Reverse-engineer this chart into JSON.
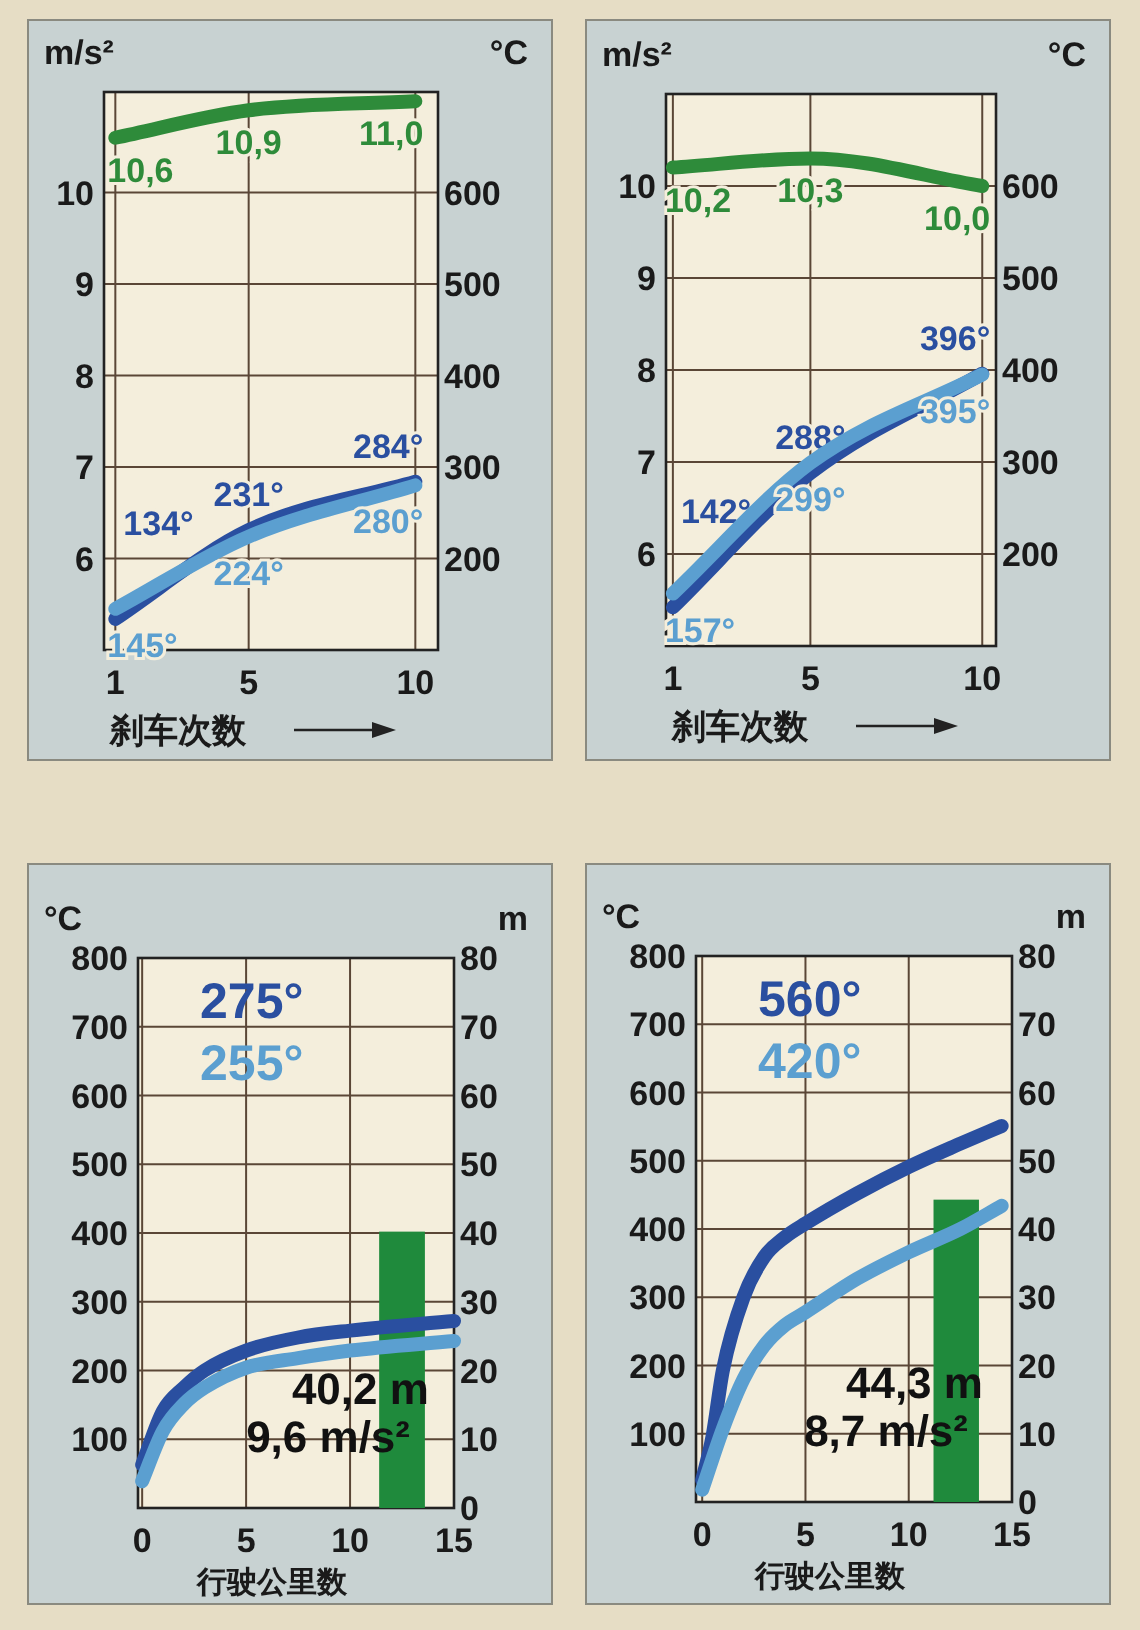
{
  "chart_data": [
    {
      "type": "line",
      "ylabel": "m/s²",
      "y2label": "°C",
      "xlabel": "刹车次数",
      "x": [
        1,
        5,
        10
      ],
      "xlim": [
        0.66,
        10.68
      ],
      "xticks": [
        1,
        5,
        10
      ],
      "ylim": [
        5.0,
        11.1
      ],
      "yticks": [
        6,
        7,
        8,
        9,
        10
      ],
      "y2lim": [
        100,
        710
      ],
      "y2ticks": [
        200,
        300,
        400,
        500,
        600
      ],
      "grid": true,
      "series": [
        {
          "color": "#2e8b3a",
          "values": [
            10.6,
            10.9,
            11.0
          ],
          "value_labels": [
            "10,6",
            "10,9",
            "11,0"
          ]
        },
        {
          "color": "#2a4fa0",
          "axis": "y2",
          "values": [
            134,
            231,
            284
          ],
          "value_labels": [
            "134°",
            "231°",
            "284°"
          ]
        },
        {
          "color": "#5b9fd0",
          "axis": "y2",
          "values": [
            145,
            224,
            280
          ],
          "value_labels": [
            "145°",
            "224°",
            "280°"
          ]
        }
      ]
    },
    {
      "type": "line",
      "ylabel": "m/s²",
      "y2label": "°C",
      "xlabel": "刹车次数",
      "x": [
        1,
        5,
        10
      ],
      "xlim": [
        0.8,
        10.4
      ],
      "xticks": [
        1,
        5,
        10
      ],
      "ylim": [
        5.0,
        11.0
      ],
      "yticks": [
        6,
        7,
        8,
        9,
        10
      ],
      "y2lim": [
        100,
        700
      ],
      "y2ticks": [
        200,
        300,
        400,
        500,
        600
      ],
      "grid": true,
      "series": [
        {
          "color": "#2e8b3a",
          "values": [
            10.2,
            10.3,
            10.0
          ],
          "value_labels": [
            "10,2",
            "10,3",
            "10,0"
          ]
        },
        {
          "color": "#2a4fa0",
          "axis": "y2",
          "values": [
            142,
            288,
            396
          ],
          "value_labels": [
            "142°",
            "288°",
            "396°"
          ]
        },
        {
          "color": "#5b9fd0",
          "axis": "y2",
          "values": [
            157,
            299,
            395
          ],
          "value_labels": [
            "157°",
            "299°",
            "395°"
          ]
        }
      ]
    },
    {
      "type": "line",
      "ylabel": "°C",
      "y2label": "m",
      "xlabel": "行驶公里数",
      "xlim": [
        -0.2,
        15
      ],
      "xticks": [
        0,
        5,
        10,
        15
      ],
      "ylim": [
        0,
        800
      ],
      "yticks": [
        100,
        200,
        300,
        400,
        500,
        600,
        700,
        800
      ],
      "y2lim": [
        0,
        80
      ],
      "y2ticks": [
        0,
        10,
        20,
        30,
        40,
        50,
        60,
        70,
        80
      ],
      "grid": true,
      "annotations": [
        "275°",
        "255°",
        "9,6 m/s²"
      ],
      "series": [
        {
          "color": "#2a4fa0",
          "x": [
            0,
            1,
            2,
            3,
            5,
            7.5,
            10,
            15
          ],
          "values": [
            63,
            141,
            175,
            200,
            229,
            248,
            258,
            272
          ]
        },
        {
          "color": "#5b9fd0",
          "x": [
            0,
            1,
            2,
            3,
            5,
            7.5,
            10,
            15
          ],
          "values": [
            39,
            112,
            151,
            175,
            204,
            218,
            229,
            243
          ]
        },
        {
          "type": "bar",
          "color": "#1f8a3c",
          "axis": "y2",
          "x": [
            12.5
          ],
          "values": [
            40.2
          ],
          "value_labels": [
            "40,2 m"
          ]
        }
      ]
    },
    {
      "type": "line",
      "ylabel": "°C",
      "y2label": "m",
      "xlabel": "行驶公里数",
      "xlim": [
        -0.3,
        15
      ],
      "xticks": [
        0,
        5,
        10,
        15
      ],
      "ylim": [
        0,
        800
      ],
      "yticks": [
        100,
        200,
        300,
        400,
        500,
        600,
        700,
        800
      ],
      "y2lim": [
        0,
        80
      ],
      "y2ticks": [
        0,
        10,
        20,
        30,
        40,
        50,
        60,
        70,
        80
      ],
      "grid": true,
      "annotations": [
        "560°",
        "420°",
        "8,7 m/s²"
      ],
      "series": [
        {
          "color": "#2a4fa0",
          "x": [
            0,
            0.5,
            1,
            2,
            3,
            4,
            5,
            7.5,
            10,
            12.5,
            14.5
          ],
          "values": [
            32,
            96,
            193,
            300,
            359,
            388,
            408,
            452,
            491,
            525,
            551
          ]
        },
        {
          "color": "#5b9fd0",
          "x": [
            0,
            1,
            2,
            3,
            4,
            5,
            7.5,
            10,
            12.5,
            14.5
          ],
          "values": [
            18,
            107,
            180,
            229,
            259,
            278,
            327,
            366,
            400,
            434
          ]
        },
        {
          "type": "bar",
          "color": "#1f8a3c",
          "axis": "y2",
          "x": [
            12.3
          ],
          "values": [
            44.3
          ],
          "value_labels": [
            "44,3 m"
          ]
        }
      ]
    }
  ]
}
